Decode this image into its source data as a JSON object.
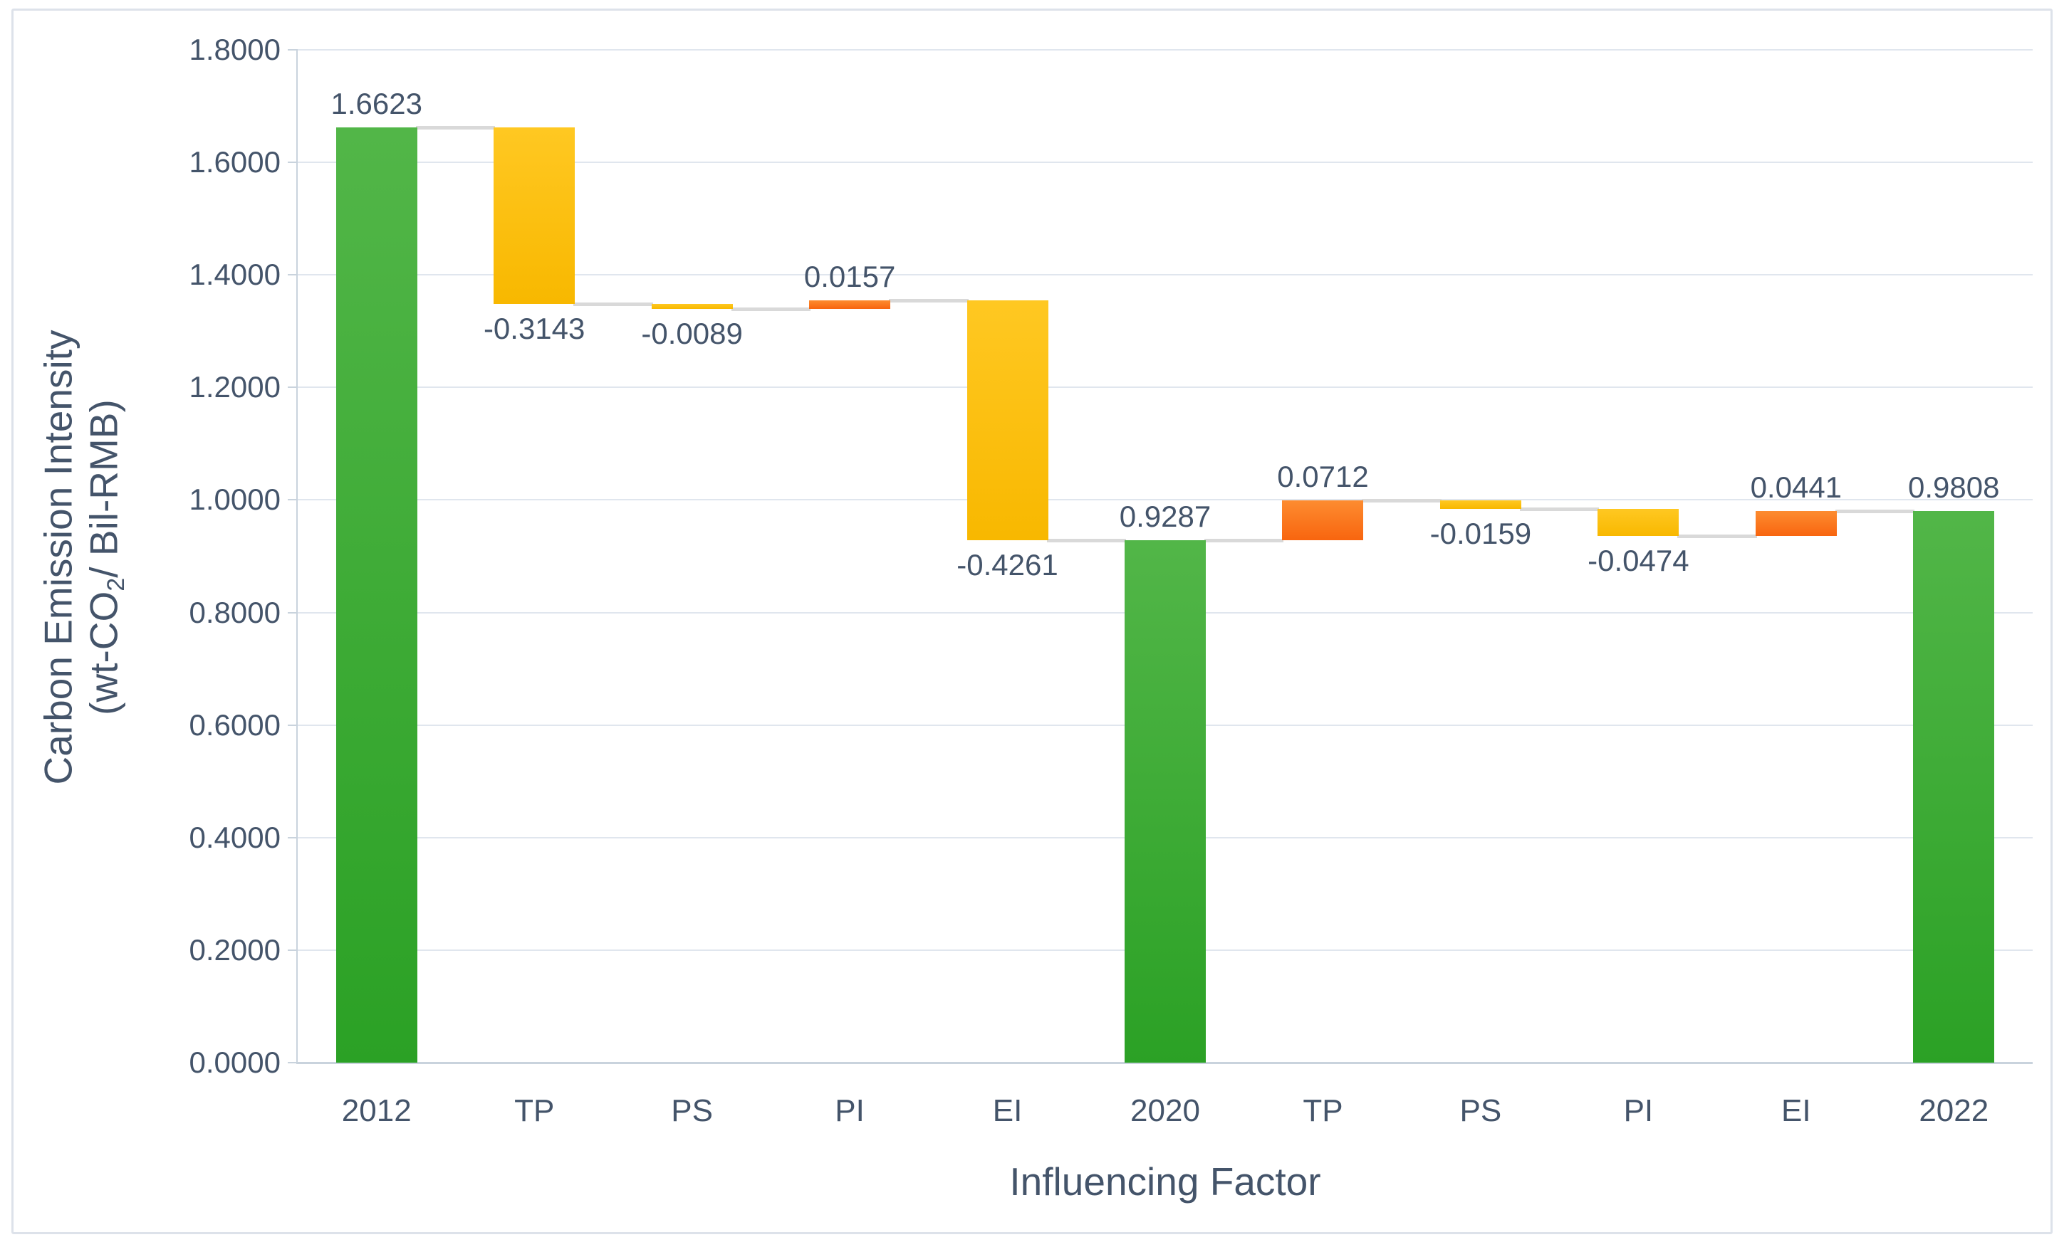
{
  "chart_data": {
    "type": "bar",
    "subtype": "waterfall",
    "xlabel": "Influencing Factor",
    "ylabel": {
      "line1": "Carbon Emission Intensity",
      "line2_prefix": "(wt-CO",
      "line2_sub": "2",
      "line2_suffix": "/ Bil-RMB)"
    },
    "ylim": [
      0,
      1.8
    ],
    "grid": true,
    "legend": "none",
    "y_ticks": [
      {
        "label": "1.8000",
        "value": 1.8
      },
      {
        "label": "1.6000",
        "value": 1.6
      },
      {
        "label": "1.4000",
        "value": 1.4
      },
      {
        "label": "1.2000",
        "value": 1.2
      },
      {
        "label": "1.0000",
        "value": 1.0
      },
      {
        "label": "0.8000",
        "value": 0.8
      },
      {
        "label": "0.6000",
        "value": 0.6
      },
      {
        "label": "0.4000",
        "value": 0.4
      },
      {
        "label": "0.2000",
        "value": 0.2
      },
      {
        "label": "0.0000",
        "value": 0.0
      }
    ],
    "categories": [
      "2012",
      "TP",
      "PS",
      "PI",
      "EI",
      "2020",
      "TP",
      "PS",
      "PI",
      "EI",
      "2022"
    ],
    "bars": [
      {
        "category": "2012",
        "value": 1.6623,
        "label": "1.6623",
        "type": "total",
        "bottom": 0,
        "top": 1.6623,
        "label_pos": "above"
      },
      {
        "category": "TP",
        "value": -0.3143,
        "label": "-0.3143",
        "type": "decrease",
        "bottom": 1.348,
        "top": 1.6623,
        "label_pos": "below"
      },
      {
        "category": "PS",
        "value": -0.0089,
        "label": "-0.0089",
        "type": "decrease",
        "bottom": 1.3391,
        "top": 1.348,
        "label_pos": "below"
      },
      {
        "category": "PI",
        "value": 0.0157,
        "label": "0.0157",
        "type": "increase",
        "bottom": 1.3391,
        "top": 1.3548,
        "label_pos": "above"
      },
      {
        "category": "EI",
        "value": -0.4261,
        "label": "-0.4261",
        "type": "decrease",
        "bottom": 0.9287,
        "top": 1.3548,
        "label_pos": "below"
      },
      {
        "category": "2020",
        "value": 0.9287,
        "label": "0.9287",
        "type": "total",
        "bottom": 0,
        "top": 0.9287,
        "label_pos": "above"
      },
      {
        "category": "TP",
        "value": 0.0712,
        "label": "0.0712",
        "type": "increase",
        "bottom": 0.9287,
        "top": 0.9999,
        "label_pos": "above"
      },
      {
        "category": "PS",
        "value": -0.0159,
        "label": "-0.0159",
        "type": "decrease",
        "bottom": 0.984,
        "top": 0.9999,
        "label_pos": "below"
      },
      {
        "category": "PI",
        "value": -0.0474,
        "label": "-0.0474",
        "type": "decrease",
        "bottom": 0.9366,
        "top": 0.984,
        "label_pos": "below"
      },
      {
        "category": "EI",
        "value": 0.0441,
        "label": "0.0441",
        "type": "increase",
        "bottom": 0.9366,
        "top": 0.9807,
        "label_pos": "above"
      },
      {
        "category": "2022",
        "value": 0.9808,
        "label": "0.9808",
        "type": "total",
        "bottom": 0,
        "top": 0.9808,
        "label_pos": "above"
      }
    ],
    "connectors": [
      1.6623,
      1.348,
      1.3391,
      1.3548,
      0.9287,
      0.9287,
      0.9999,
      0.984,
      0.9366,
      0.9807
    ],
    "colors": {
      "total": [
        "#52b648",
        "#2ba125"
      ],
      "decrease": [
        "#ffc822",
        "#f8b800"
      ],
      "increase": [
        "#fd8c30",
        "#f8650f"
      ],
      "text": "#44546a",
      "gridline": "#e0e6ee",
      "axis": "#c9d3dd",
      "connector": "#d9d9d9",
      "border": "#dde2ea"
    }
  }
}
